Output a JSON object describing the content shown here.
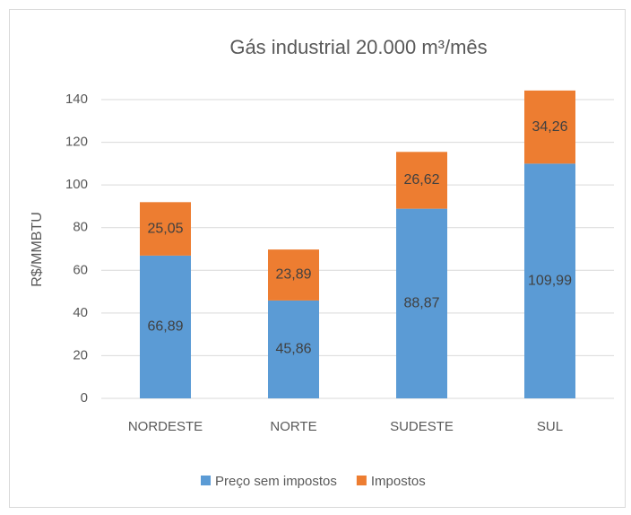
{
  "chart_data": {
    "type": "stacked_bar",
    "title": "Gás industrial 20.000 m³/mês",
    "y_label": "R$/MMBTU",
    "categories": [
      "NORDESTE",
      "NORTE",
      "SUDESTE",
      "SUL"
    ],
    "series": [
      {
        "name": "Preço sem impostos",
        "color": "#5b9bd5",
        "values": [
          66.89,
          45.86,
          88.87,
          109.99
        ],
        "value_labels": [
          "66,89",
          "45,86",
          "88,87",
          "109,99"
        ]
      },
      {
        "name": "Impostos",
        "color": "#ed7d31",
        "values": [
          25.05,
          23.89,
          26.62,
          34.26
        ],
        "value_labels": [
          "25,05",
          "23,89",
          "26,62",
          "34,26"
        ]
      }
    ],
    "ylim": [
      0,
      140
    ],
    "yticks": [
      0,
      20,
      40,
      60,
      80,
      100,
      120,
      140
    ],
    "grid": true,
    "legend": "bottom"
  }
}
